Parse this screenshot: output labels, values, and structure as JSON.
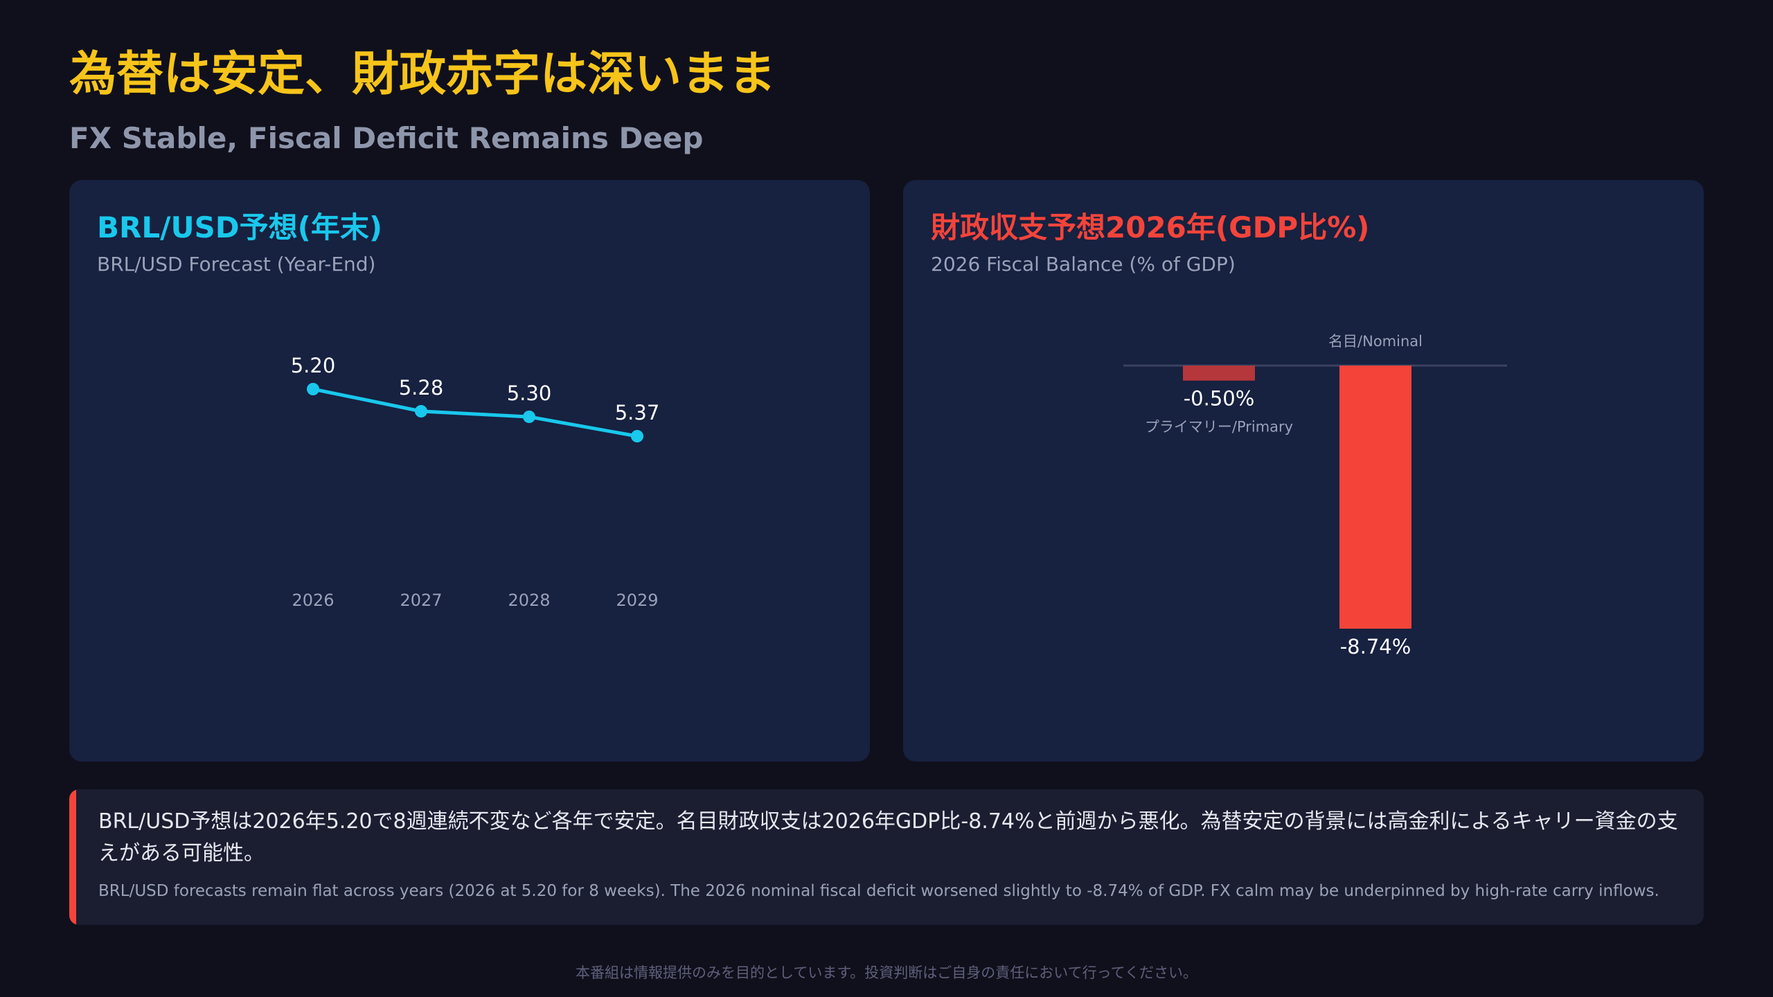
{
  "header": {
    "title_jp": "為替は安定、財政赤字は深いまま",
    "title_en": "FX Stable, Fiscal Deficit Remains Deep"
  },
  "colors": {
    "accent_yellow": "#f7c41a",
    "fx_line": "#19c8ec",
    "fiscal_red": "#f4443a",
    "primary_bar": "#b5363b",
    "panel_bg": "#172140"
  },
  "fx_panel": {
    "title": "BRL/USD予想(年末)",
    "subtitle": "BRL/USD Forecast (Year-End)"
  },
  "fiscal_panel": {
    "title": "財政収支予想2026年(GDP比%)",
    "subtitle": "2026 Fiscal Balance (% of GDP)"
  },
  "note": {
    "jp": "BRL/USD予想は2026年5.20で8週連続不変など各年で安定。名目財政収支は2026年GDP比-8.74%と前週から悪化。為替安定の背景には高金利によるキャリー資金の支えがある可能性。",
    "en": "BRL/USD forecasts remain flat across years (2026 at 5.20 for 8 weeks). The 2026 nominal fiscal deficit worsened slightly to -8.74% of GDP. FX calm may be underpinned by high-rate carry inflows."
  },
  "footer": {
    "disclaimer": "本番組は情報提供のみを目的としています。投資判断はご自身の責任において行ってください。"
  },
  "chart_data": [
    {
      "type": "line",
      "title": "BRL/USD予想(年末)",
      "subtitle": "BRL/USD Forecast (Year-End)",
      "categories": [
        "2026",
        "2027",
        "2028",
        "2029"
      ],
      "values": [
        5.2,
        5.28,
        5.3,
        5.37
      ],
      "value_labels": [
        "5.20",
        "5.28",
        "5.30",
        "5.37"
      ],
      "y_direction": "reversed",
      "grid": false,
      "color": "#19c8ec"
    },
    {
      "type": "bar",
      "title": "財政収支予想2026年(GDP比%)",
      "subtitle": "2026 Fiscal Balance (% of GDP)",
      "categories": [
        "プライマリー/Primary",
        "名目/Nominal"
      ],
      "values": [
        -0.5,
        -8.74
      ],
      "value_labels": [
        "-0.50%",
        "-8.74%"
      ],
      "colors": [
        "#b5363b",
        "#f4443a"
      ],
      "baseline": 0,
      "grid": false
    }
  ]
}
